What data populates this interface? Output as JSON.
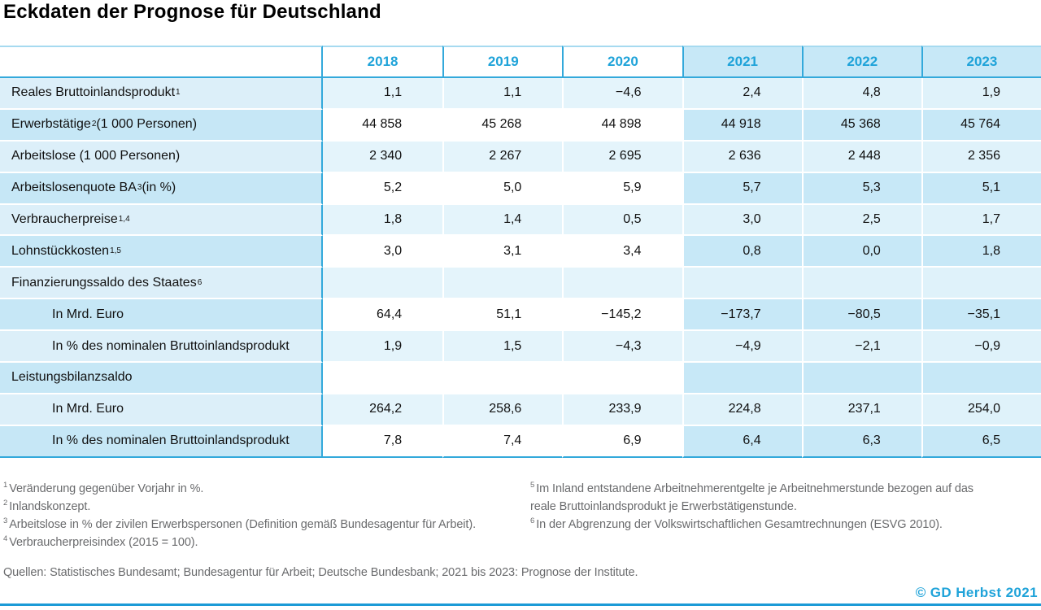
{
  "title": "Eckdaten der Prognose für Deutschland",
  "accent_color": "#1FA3D9",
  "table": {
    "years": [
      "2018",
      "2019",
      "2020",
      "2021",
      "2022",
      "2023"
    ],
    "forecast_years": [
      "2021",
      "2022",
      "2023"
    ],
    "rows": [
      {
        "pre": "Reales Bruttoinlandsprodukt",
        "sup": "1",
        "post": "",
        "indent": false,
        "values": [
          "1,1",
          "1,1",
          "−4,6",
          "2,4",
          "4,8",
          "1,9"
        ]
      },
      {
        "pre": "Erwerbstätige",
        "sup": "2",
        "post": " (1 000 Personen)",
        "indent": false,
        "values": [
          "44 858",
          "45 268",
          "44 898",
          "44 918",
          "45 368",
          "45 764"
        ]
      },
      {
        "pre": "Arbeitslose (1 000 Personen)",
        "sup": "",
        "post": "",
        "indent": false,
        "values": [
          "2 340",
          "2 267",
          "2 695",
          "2 636",
          "2 448",
          "2 356"
        ]
      },
      {
        "pre": "Arbeitslosenquote BA",
        "sup": "3",
        "post": " (in %)",
        "indent": false,
        "values": [
          "5,2",
          "5,0",
          "5,9",
          "5,7",
          "5,3",
          "5,1"
        ]
      },
      {
        "pre": "Verbraucherpreise",
        "sup": "1,4",
        "post": "",
        "indent": false,
        "values": [
          "1,8",
          "1,4",
          "0,5",
          "3,0",
          "2,5",
          "1,7"
        ]
      },
      {
        "pre": "Lohnstückkosten",
        "sup": "1,5",
        "post": "",
        "indent": false,
        "values": [
          "3,0",
          "3,1",
          "3,4",
          "0,8",
          "0,0",
          "1,8"
        ]
      },
      {
        "pre": "Finanzierungssaldo des Staates",
        "sup": "6",
        "post": "",
        "indent": false,
        "values": [
          "",
          "",
          "",
          "",
          "",
          ""
        ]
      },
      {
        "pre": "In Mrd. Euro",
        "sup": "",
        "post": "",
        "indent": true,
        "values": [
          "64,4",
          "51,1",
          "−145,2",
          "−173,7",
          "−80,5",
          "−35,1"
        ]
      },
      {
        "pre": "In % des nominalen Bruttoinlandsprodukt",
        "sup": "",
        "post": "",
        "indent": true,
        "values": [
          "1,9",
          "1,5",
          "−4,3",
          "−4,9",
          "−2,1",
          "−0,9"
        ]
      },
      {
        "pre": "Leistungsbilanzsaldo",
        "sup": "",
        "post": "",
        "indent": false,
        "values": [
          "",
          "",
          "",
          "",
          "",
          ""
        ]
      },
      {
        "pre": "In Mrd. Euro",
        "sup": "",
        "post": "",
        "indent": true,
        "values": [
          "264,2",
          "258,6",
          "233,9",
          "224,8",
          "237,1",
          "254,0"
        ]
      },
      {
        "pre": "In % des nominalen Bruttoinlandsprodukt",
        "sup": "",
        "post": "",
        "indent": true,
        "values": [
          "7,8",
          "7,4",
          "6,9",
          "6,4",
          "6,3",
          "6,5"
        ]
      }
    ]
  },
  "chart_data": {
    "type": "table",
    "title": "Eckdaten der Prognose für Deutschland",
    "columns": [
      "2018",
      "2019",
      "2020",
      "2021",
      "2022",
      "2023"
    ],
    "forecast_columns": [
      "2021",
      "2022",
      "2023"
    ],
    "rows": [
      {
        "label": "Reales Bruttoinlandsprodukt (Veränderung gegenüber Vorjahr in %)",
        "values": [
          1.1,
          1.1,
          -4.6,
          2.4,
          4.8,
          1.9
        ]
      },
      {
        "label": "Erwerbstätige (1 000 Personen)",
        "values": [
          44858,
          45268,
          44898,
          44918,
          45368,
          45764
        ]
      },
      {
        "label": "Arbeitslose (1 000 Personen)",
        "values": [
          2340,
          2267,
          2695,
          2636,
          2448,
          2356
        ]
      },
      {
        "label": "Arbeitslosenquote BA (in %)",
        "values": [
          5.2,
          5.0,
          5.9,
          5.7,
          5.3,
          5.1
        ]
      },
      {
        "label": "Verbraucherpreise (Veränderung gegenüber Vorjahr in %)",
        "values": [
          1.8,
          1.4,
          0.5,
          3.0,
          2.5,
          1.7
        ]
      },
      {
        "label": "Lohnstückkosten (Veränderung gegenüber Vorjahr in %)",
        "values": [
          3.0,
          3.1,
          3.4,
          0.8,
          0.0,
          1.8
        ]
      },
      {
        "label": "Finanzierungssaldo des Staates – In Mrd. Euro",
        "values": [
          64.4,
          51.1,
          -145.2,
          -173.7,
          -80.5,
          -35.1
        ]
      },
      {
        "label": "Finanzierungssaldo des Staates – In % des nominalen Bruttoinlandsprodukt",
        "values": [
          1.9,
          1.5,
          -4.3,
          -4.9,
          -2.1,
          -0.9
        ]
      },
      {
        "label": "Leistungsbilanzsaldo – In Mrd. Euro",
        "values": [
          264.2,
          258.6,
          233.9,
          224.8,
          237.1,
          254.0
        ]
      },
      {
        "label": "Leistungsbilanzsaldo – In % des nominalen Bruttoinlandsprodukt",
        "values": [
          7.8,
          7.4,
          6.9,
          6.4,
          6.3,
          6.5
        ]
      }
    ]
  },
  "footnotes_left": [
    {
      "sup": "1",
      "text": "Veränderung gegenüber Vorjahr in %."
    },
    {
      "sup": "2",
      "text": "Inlandskonzept."
    },
    {
      "sup": "3",
      "text": "Arbeitslose in % der zivilen Erwerbspersonen (Definition gemäß Bundesagentur für Arbeit)."
    },
    {
      "sup": "4",
      "text": "Verbraucherpreisindex (2015 = 100)."
    }
  ],
  "footnotes_right": [
    {
      "sup": "5",
      "text": "Im Inland entstandene Arbeitnehmerentgelte je Arbeitnehmerstunde bezogen auf das reale Bruttoinlandsprodukt je Erwerbstätigenstunde."
    },
    {
      "sup": "6",
      "text": "In der Abgrenzung der Volkswirtschaftlichen Gesamtrechnungen (ESVG 2010)."
    }
  ],
  "sources": "Quellen: Statistisches Bundesamt; Bundesagentur für Arbeit; Deutsche Bundesbank; 2021 bis 2023: Prognose der Institute.",
  "copyright": "© GD Herbst 2021"
}
